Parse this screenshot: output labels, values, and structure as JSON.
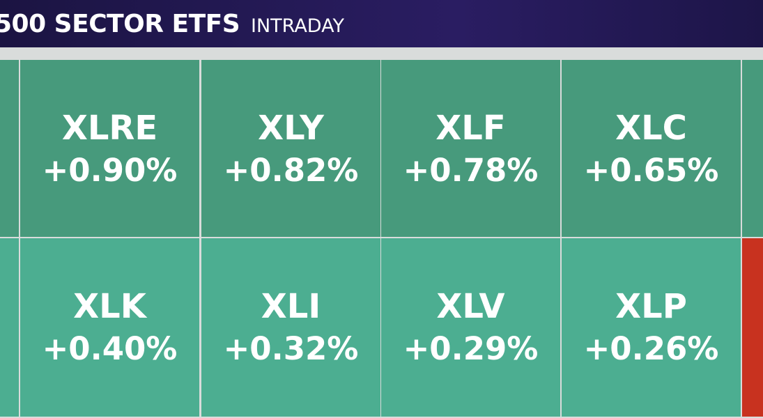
{
  "header": {
    "title": "500 SECTOR ETFS",
    "subtitle": "INTRADAY"
  },
  "tiles": [
    [
      {
        "ticker": "XLRE",
        "change": "+0.90%"
      },
      {
        "ticker": "XLY",
        "change": "+0.82%"
      },
      {
        "ticker": "XLF",
        "change": "+0.78%"
      },
      {
        "ticker": "XLC",
        "change": "+0.65%"
      }
    ],
    [
      {
        "ticker": "XLK",
        "change": "+0.40%"
      },
      {
        "ticker": "XLI",
        "change": "+0.32%"
      },
      {
        "ticker": "XLV",
        "change": "+0.29%"
      },
      {
        "ticker": "XLP",
        "change": "+0.26%"
      }
    ]
  ]
}
